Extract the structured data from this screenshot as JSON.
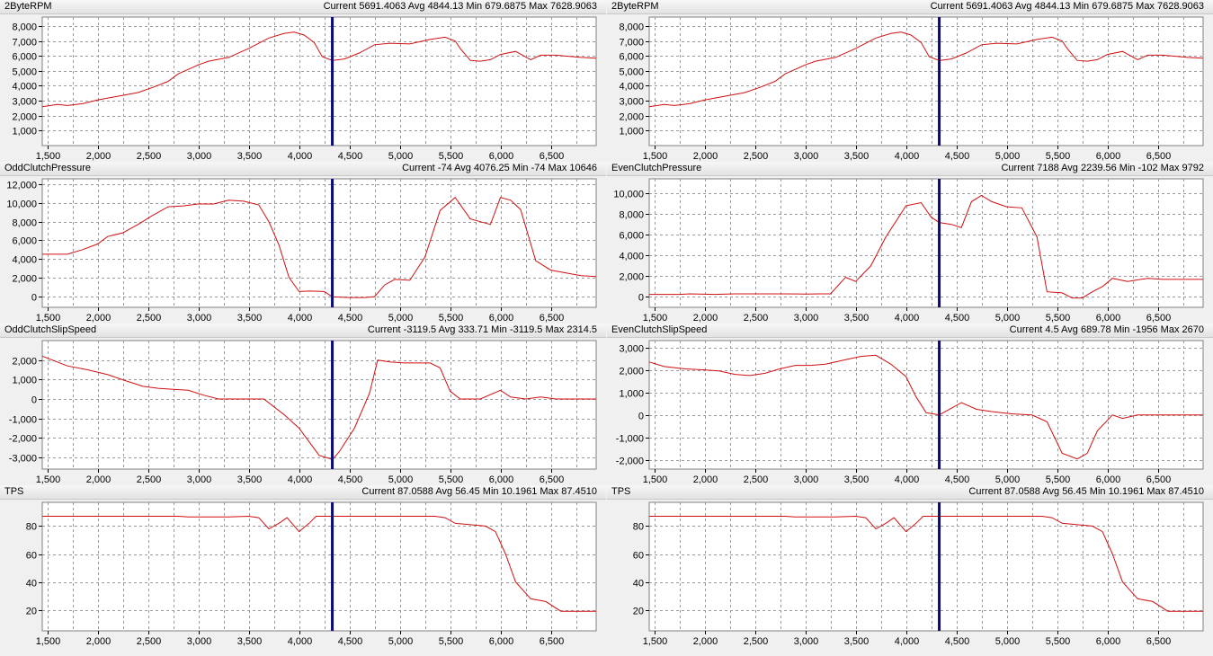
{
  "colors": {
    "line": "#d01010",
    "cursor": "#0a0a78",
    "grid": "#9a9a9a",
    "plot_bg": "#ffffff"
  },
  "cursor_x": 4330,
  "panels": [
    {
      "name": "2ByteRPM",
      "current": "5691.4063",
      "avg": "4844.13",
      "min": "679.6875",
      "max": "7628.9063",
      "yrange": [
        0,
        8600
      ],
      "yticks": [
        1000,
        2000,
        3000,
        4000,
        5000,
        6000,
        7000,
        8000
      ],
      "yticklabels": [
        "1,000",
        "2,000",
        "3,000",
        "4,000",
        "5,000",
        "6,000",
        "7,000",
        "8,000"
      ],
      "points": [
        [
          1450,
          2600
        ],
        [
          1600,
          2750
        ],
        [
          1700,
          2680
        ],
        [
          1850,
          2800
        ],
        [
          2000,
          3050
        ],
        [
          2200,
          3300
        ],
        [
          2400,
          3550
        ],
        [
          2550,
          3900
        ],
        [
          2700,
          4300
        ],
        [
          2800,
          4800
        ],
        [
          2900,
          5100
        ],
        [
          3000,
          5400
        ],
        [
          3100,
          5650
        ],
        [
          3300,
          5900
        ],
        [
          3500,
          6500
        ],
        [
          3700,
          7200
        ],
        [
          3850,
          7500
        ],
        [
          3950,
          7600
        ],
        [
          4050,
          7400
        ],
        [
          4150,
          6900
        ],
        [
          4230,
          5950
        ],
        [
          4330,
          5690
        ],
        [
          4450,
          5800
        ],
        [
          4600,
          6200
        ],
        [
          4750,
          6750
        ],
        [
          4900,
          6850
        ],
        [
          5100,
          6800
        ],
        [
          5300,
          7100
        ],
        [
          5450,
          7250
        ],
        [
          5550,
          7000
        ],
        [
          5600,
          6500
        ],
        [
          5700,
          5700
        ],
        [
          5800,
          5650
        ],
        [
          5900,
          5750
        ],
        [
          6000,
          6100
        ],
        [
          6150,
          6300
        ],
        [
          6300,
          5750
        ],
        [
          6400,
          6050
        ],
        [
          6550,
          6050
        ],
        [
          6800,
          5900
        ],
        [
          6950,
          5850
        ]
      ]
    },
    {
      "name": "2ByteRPM",
      "current": "5691.4063",
      "avg": "4844.13",
      "min": "679.6875",
      "max": "7628.9063",
      "yrange": [
        0,
        8600
      ],
      "yticks": [
        1000,
        2000,
        3000,
        4000,
        5000,
        6000,
        7000,
        8000
      ],
      "yticklabels": [
        "1,000",
        "2,000",
        "3,000",
        "4,000",
        "5,000",
        "6,000",
        "7,000",
        "8,000"
      ],
      "points": [
        [
          1450,
          2600
        ],
        [
          1600,
          2750
        ],
        [
          1700,
          2680
        ],
        [
          1850,
          2800
        ],
        [
          2000,
          3050
        ],
        [
          2200,
          3300
        ],
        [
          2400,
          3550
        ],
        [
          2550,
          3900
        ],
        [
          2700,
          4300
        ],
        [
          2800,
          4800
        ],
        [
          2900,
          5100
        ],
        [
          3000,
          5400
        ],
        [
          3100,
          5650
        ],
        [
          3300,
          5900
        ],
        [
          3500,
          6500
        ],
        [
          3700,
          7200
        ],
        [
          3850,
          7500
        ],
        [
          3950,
          7600
        ],
        [
          4050,
          7400
        ],
        [
          4150,
          6900
        ],
        [
          4230,
          5950
        ],
        [
          4330,
          5690
        ],
        [
          4450,
          5800
        ],
        [
          4600,
          6200
        ],
        [
          4750,
          6750
        ],
        [
          4900,
          6850
        ],
        [
          5100,
          6800
        ],
        [
          5300,
          7100
        ],
        [
          5450,
          7250
        ],
        [
          5550,
          7000
        ],
        [
          5600,
          6500
        ],
        [
          5700,
          5700
        ],
        [
          5800,
          5650
        ],
        [
          5900,
          5750
        ],
        [
          6000,
          6100
        ],
        [
          6150,
          6300
        ],
        [
          6300,
          5750
        ],
        [
          6400,
          6050
        ],
        [
          6550,
          6050
        ],
        [
          6800,
          5900
        ],
        [
          6950,
          5850
        ]
      ]
    },
    {
      "name": "OddClutchPressure",
      "current": "-74",
      "avg": "4076.25",
      "min": "-74",
      "max": "10646",
      "yrange": [
        -1200,
        12600
      ],
      "yticks": [
        0,
        2000,
        4000,
        6000,
        8000,
        10000,
        12000
      ],
      "yticklabels": [
        "0",
        "2,000",
        "4,000",
        "6,000",
        "8,000",
        "10,000",
        "12,000"
      ],
      "points": [
        [
          1450,
          4500
        ],
        [
          1700,
          4500
        ],
        [
          1850,
          5000
        ],
        [
          2000,
          5600
        ],
        [
          2100,
          6400
        ],
        [
          2250,
          6800
        ],
        [
          2400,
          7700
        ],
        [
          2550,
          8700
        ],
        [
          2700,
          9600
        ],
        [
          2850,
          9700
        ],
        [
          3000,
          9900
        ],
        [
          3150,
          9900
        ],
        [
          3300,
          10300
        ],
        [
          3450,
          10200
        ],
        [
          3600,
          9800
        ],
        [
          3700,
          8000
        ],
        [
          3800,
          5500
        ],
        [
          3900,
          2000
        ],
        [
          4000,
          500
        ],
        [
          4100,
          550
        ],
        [
          4250,
          500
        ],
        [
          4330,
          -74
        ],
        [
          4500,
          -150
        ],
        [
          4650,
          -150
        ],
        [
          4750,
          -50
        ],
        [
          4850,
          1200
        ],
        [
          4950,
          1800
        ],
        [
          5100,
          1700
        ],
        [
          5250,
          4200
        ],
        [
          5400,
          9200
        ],
        [
          5550,
          10600
        ],
        [
          5700,
          8300
        ],
        [
          5800,
          8000
        ],
        [
          5900,
          7700
        ],
        [
          6000,
          10600
        ],
        [
          6100,
          10300
        ],
        [
          6200,
          9300
        ],
        [
          6350,
          3800
        ],
        [
          6500,
          2800
        ],
        [
          6700,
          2400
        ],
        [
          6800,
          2200
        ],
        [
          6950,
          2100
        ]
      ]
    },
    {
      "name": "EvenClutchPressure",
      "current": "7188",
      "avg": "2239.56",
      "min": "-102",
      "max": "9792",
      "yrange": [
        -1000,
        11400
      ],
      "yticks": [
        0,
        2000,
        4000,
        6000,
        8000,
        10000
      ],
      "yticklabels": [
        "0",
        "2,000",
        "4,000",
        "6,000",
        "8,000",
        "10,000"
      ],
      "points": [
        [
          1450,
          250
        ],
        [
          1750,
          250
        ],
        [
          1850,
          300
        ],
        [
          2100,
          250
        ],
        [
          2300,
          300
        ],
        [
          2600,
          300
        ],
        [
          2800,
          300
        ],
        [
          3000,
          280
        ],
        [
          3150,
          300
        ],
        [
          3250,
          300
        ],
        [
          3400,
          1900
        ],
        [
          3500,
          1500
        ],
        [
          3650,
          3000
        ],
        [
          3800,
          5800
        ],
        [
          4000,
          8800
        ],
        [
          4150,
          9100
        ],
        [
          4250,
          7700
        ],
        [
          4330,
          7190
        ],
        [
          4450,
          7000
        ],
        [
          4550,
          6700
        ],
        [
          4650,
          9200
        ],
        [
          4750,
          9800
        ],
        [
          4850,
          9200
        ],
        [
          5000,
          8700
        ],
        [
          5150,
          8600
        ],
        [
          5300,
          5800
        ],
        [
          5400,
          500
        ],
        [
          5550,
          400
        ],
        [
          5650,
          -100
        ],
        [
          5750,
          -100
        ],
        [
          5850,
          500
        ],
        [
          5950,
          1000
        ],
        [
          6050,
          1800
        ],
        [
          6200,
          1500
        ],
        [
          6400,
          1800
        ],
        [
          6550,
          1700
        ],
        [
          6950,
          1700
        ]
      ]
    },
    {
      "name": "OddClutchSlipSpeed",
      "current": "-3119.5",
      "avg": "333.71",
      "min": "-3119.5",
      "max": "2314.5",
      "yrange": [
        -3600,
        3000
      ],
      "yticks": [
        -3000,
        -2000,
        -1000,
        0,
        1000,
        2000
      ],
      "yticklabels": [
        "-3,000",
        "-2,000",
        "-1,000",
        "0",
        "1,000",
        "2,000"
      ],
      "points": [
        [
          1450,
          2200
        ],
        [
          1550,
          2000
        ],
        [
          1700,
          1700
        ],
        [
          1900,
          1500
        ],
        [
          2100,
          1250
        ],
        [
          2300,
          900
        ],
        [
          2450,
          650
        ],
        [
          2600,
          550
        ],
        [
          2750,
          500
        ],
        [
          2900,
          450
        ],
        [
          3050,
          200
        ],
        [
          3200,
          0
        ],
        [
          3650,
          0
        ],
        [
          3850,
          -800
        ],
        [
          4000,
          -1500
        ],
        [
          4100,
          -2200
        ],
        [
          4200,
          -2900
        ],
        [
          4300,
          -3050
        ],
        [
          4330,
          -3119
        ],
        [
          4400,
          -2700
        ],
        [
          4550,
          -1500
        ],
        [
          4700,
          300
        ],
        [
          4780,
          2000
        ],
        [
          4900,
          1900
        ],
        [
          5050,
          1850
        ],
        [
          5300,
          1850
        ],
        [
          5400,
          1600
        ],
        [
          5500,
          400
        ],
        [
          5600,
          0
        ],
        [
          5800,
          0
        ],
        [
          6000,
          450
        ],
        [
          6100,
          100
        ],
        [
          6250,
          0
        ],
        [
          6400,
          100
        ],
        [
          6550,
          0
        ],
        [
          6950,
          0
        ]
      ]
    },
    {
      "name": "EvenClutchSlipSpeed",
      "current": "4.5",
      "avg": "689.78",
      "min": "-1956",
      "max": "2670",
      "yrange": [
        -2400,
        3300
      ],
      "yticks": [
        -2000,
        -1000,
        0,
        1000,
        2000,
        3000
      ],
      "yticklabels": [
        "-2,000",
        "-1,000",
        "0",
        "1,000",
        "2,000",
        "3,000"
      ],
      "points": [
        [
          1450,
          2350
        ],
        [
          1600,
          2150
        ],
        [
          1800,
          2050
        ],
        [
          2000,
          2000
        ],
        [
          2150,
          1950
        ],
        [
          2300,
          1800
        ],
        [
          2450,
          1750
        ],
        [
          2600,
          1850
        ],
        [
          2750,
          2050
        ],
        [
          2900,
          2200
        ],
        [
          3050,
          2200
        ],
        [
          3200,
          2250
        ],
        [
          3400,
          2450
        ],
        [
          3550,
          2600
        ],
        [
          3700,
          2650
        ],
        [
          3850,
          2250
        ],
        [
          4000,
          1700
        ],
        [
          4100,
          800
        ],
        [
          4200,
          100
        ],
        [
          4330,
          5
        ],
        [
          4450,
          300
        ],
        [
          4550,
          550
        ],
        [
          4700,
          250
        ],
        [
          4850,
          150
        ],
        [
          5050,
          50
        ],
        [
          5250,
          0
        ],
        [
          5400,
          -300
        ],
        [
          5550,
          -1700
        ],
        [
          5700,
          -1950
        ],
        [
          5800,
          -1700
        ],
        [
          5900,
          -700
        ],
        [
          6050,
          0
        ],
        [
          6150,
          -150
        ],
        [
          6300,
          0
        ],
        [
          6600,
          0
        ],
        [
          6950,
          0
        ]
      ]
    },
    {
      "name": "TPS",
      "current": "87.0588",
      "avg": "56.45",
      "min": "10.1961",
      "max": "87.4510",
      "yrange": [
        5,
        97
      ],
      "yticks": [
        20,
        40,
        60,
        80
      ],
      "yticklabels": [
        "20",
        "40",
        "60",
        "80"
      ],
      "points": [
        [
          1450,
          87
        ],
        [
          2800,
          87
        ],
        [
          2900,
          86.5
        ],
        [
          3300,
          86.5
        ],
        [
          3500,
          87
        ],
        [
          3600,
          86
        ],
        [
          3700,
          78
        ],
        [
          3800,
          82
        ],
        [
          3880,
          86
        ],
        [
          4000,
          76
        ],
        [
          4100,
          82
        ],
        [
          4170,
          87
        ],
        [
          5350,
          87
        ],
        [
          5450,
          86
        ],
        [
          5550,
          82
        ],
        [
          5700,
          81
        ],
        [
          5850,
          80
        ],
        [
          5950,
          76
        ],
        [
          6050,
          60
        ],
        [
          6150,
          40
        ],
        [
          6300,
          28
        ],
        [
          6450,
          26
        ],
        [
          6600,
          19
        ],
        [
          6950,
          19
        ]
      ]
    },
    {
      "name": "TPS",
      "current": "87.0588",
      "avg": "56.45",
      "min": "10.1961",
      "max": "87.4510",
      "yrange": [
        5,
        97
      ],
      "yticks": [
        20,
        40,
        60,
        80
      ],
      "yticklabels": [
        "20",
        "40",
        "60",
        "80"
      ],
      "points": [
        [
          1450,
          87
        ],
        [
          2800,
          87
        ],
        [
          2900,
          86.5
        ],
        [
          3300,
          86.5
        ],
        [
          3500,
          87
        ],
        [
          3600,
          86
        ],
        [
          3700,
          78
        ],
        [
          3800,
          82
        ],
        [
          3880,
          86
        ],
        [
          4000,
          76
        ],
        [
          4100,
          82
        ],
        [
          4170,
          87
        ],
        [
          5350,
          87
        ],
        [
          5450,
          86
        ],
        [
          5550,
          82
        ],
        [
          5700,
          81
        ],
        [
          5850,
          80
        ],
        [
          5950,
          76
        ],
        [
          6050,
          60
        ],
        [
          6150,
          40
        ],
        [
          6300,
          28
        ],
        [
          6450,
          26
        ],
        [
          6600,
          19
        ],
        [
          6950,
          19
        ]
      ]
    }
  ],
  "xaxis": {
    "range": [
      1450,
      6950
    ],
    "ticks": [
      1500,
      2000,
      2500,
      3000,
      3500,
      4000,
      4500,
      5000,
      5500,
      6000,
      6500
    ],
    "labels": [
      "1,500",
      "2,000",
      "2,500",
      "3,000",
      "3,500",
      "4,000",
      "4,500",
      "5,000",
      "5,500",
      "6,000",
      "6,500"
    ],
    "grid": [
      1500,
      1750,
      2000,
      2250,
      2500,
      2750,
      3000,
      3250,
      3500,
      3750,
      4000,
      4250,
      4500,
      4750,
      5000,
      5250,
      5500,
      5750,
      6000,
      6250,
      6500,
      6750
    ]
  }
}
